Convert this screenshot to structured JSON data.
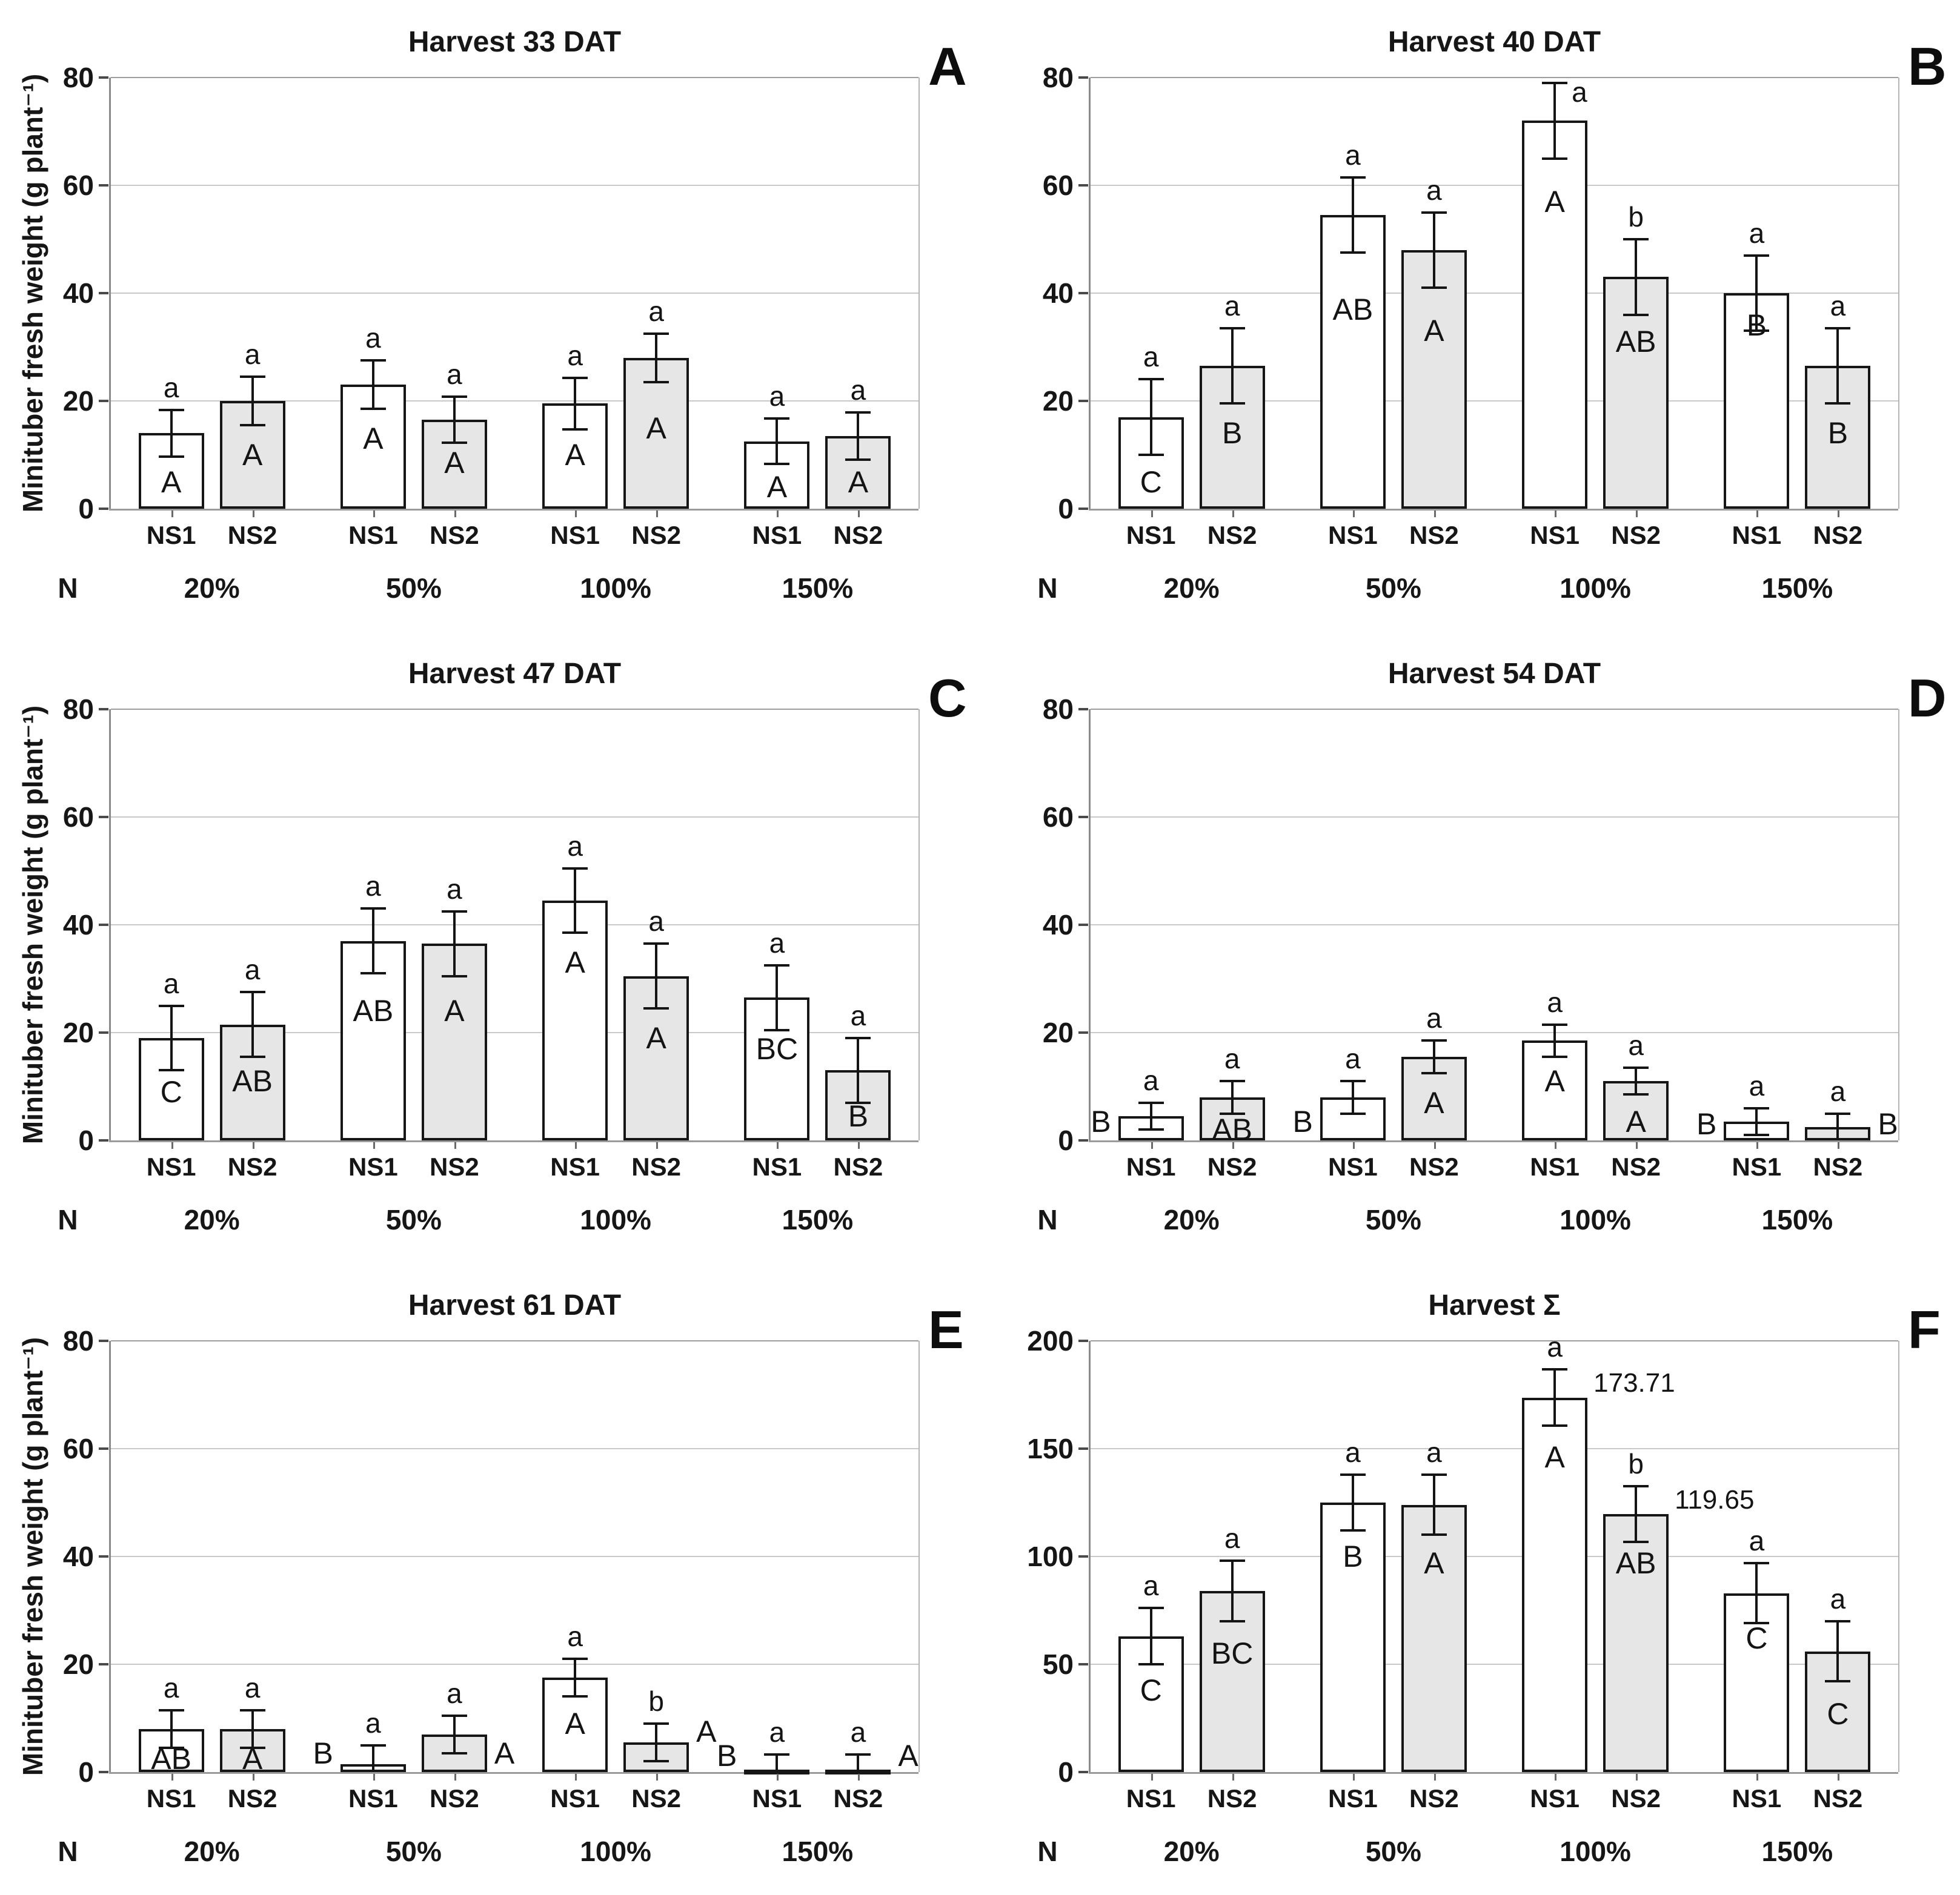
{
  "y_axis_title": "Minituber fresh weight (g plant⁻¹)",
  "n_axis_label": "N",
  "series_names": [
    "NS1",
    "NS2"
  ],
  "n_levels": [
    "20%",
    "50%",
    "100%",
    "150%"
  ],
  "colors": {
    "ns1_fill": "#ffffff",
    "ns2_fill": "#e6e6e6",
    "bar_border": "#161616",
    "grid": "#c9c9c9",
    "axis": "#8a8a8a",
    "text": "#161616"
  },
  "chart_data": [
    {
      "type": "bar",
      "panel_letter": "A",
      "title": "Harvest 33 DAT",
      "ylabel": "Minituber fresh weight (g plant⁻¹)",
      "show_ylabel": true,
      "ylim": [
        0,
        80
      ],
      "yticks": [
        0,
        20,
        40,
        60,
        80
      ],
      "groups": [
        "20%",
        "50%",
        "100%",
        "150%"
      ],
      "bars": [
        {
          "group": "20%",
          "series": "NS1",
          "value": 14,
          "error": 4.3,
          "sig_above": "a",
          "sig_group": "A",
          "sig_group_pos": "in",
          "sig_group_y": 5
        },
        {
          "group": "20%",
          "series": "NS2",
          "value": 20,
          "error": 4.5,
          "sig_above": "a",
          "sig_group": "A",
          "sig_group_pos": "in",
          "sig_group_y": 10
        },
        {
          "group": "50%",
          "series": "NS1",
          "value": 23,
          "error": 4.5,
          "sig_above": "a",
          "sig_group": "A",
          "sig_group_pos": "in",
          "sig_group_y": 13
        },
        {
          "group": "50%",
          "series": "NS2",
          "value": 16.5,
          "error": 4.3,
          "sig_above": "a",
          "sig_group": "A",
          "sig_group_pos": "in",
          "sig_group_y": 8.5
        },
        {
          "group": "100%",
          "series": "NS1",
          "value": 19.5,
          "error": 4.8,
          "sig_above": "a",
          "sig_group": "A",
          "sig_group_pos": "in",
          "sig_group_y": 10
        },
        {
          "group": "100%",
          "series": "NS2",
          "value": 28,
          "error": 4.5,
          "sig_above": "a",
          "sig_group": "A",
          "sig_group_pos": "in",
          "sig_group_y": 15
        },
        {
          "group": "150%",
          "series": "NS1",
          "value": 12.5,
          "error": 4.2,
          "sig_above": "a",
          "sig_group": "A",
          "sig_group_pos": "in",
          "sig_group_y": 4
        },
        {
          "group": "150%",
          "series": "NS2",
          "value": 13.5,
          "error": 4.4,
          "sig_above": "a",
          "sig_group": "A",
          "sig_group_pos": "in",
          "sig_group_y": 5
        }
      ]
    },
    {
      "type": "bar",
      "panel_letter": "B",
      "title": "Harvest 40 DAT",
      "show_ylabel": false,
      "ylim": [
        0,
        80
      ],
      "yticks": [
        0,
        20,
        40,
        60,
        80
      ],
      "groups": [
        "20%",
        "50%",
        "100%",
        "150%"
      ],
      "bars": [
        {
          "group": "20%",
          "series": "NS1",
          "value": 17,
          "error": 7,
          "sig_above": "a",
          "sig_group": "C",
          "sig_group_pos": "in",
          "sig_group_y": 5
        },
        {
          "group": "20%",
          "series": "NS2",
          "value": 26.5,
          "error": 7,
          "sig_above": "a",
          "sig_group": "B",
          "sig_group_pos": "in",
          "sig_group_y": 14
        },
        {
          "group": "50%",
          "series": "NS1",
          "value": 54.5,
          "error": 7,
          "sig_above": "a",
          "sig_group": "AB",
          "sig_group_pos": "in",
          "sig_group_y": 37
        },
        {
          "group": "50%",
          "series": "NS2",
          "value": 48,
          "error": 7,
          "sig_above": "a",
          "sig_group": "A",
          "sig_group_pos": "in",
          "sig_group_y": 33
        },
        {
          "group": "100%",
          "series": "NS1",
          "value": 72,
          "error": 7,
          "sig_above": "a",
          "sig_above_pos": "right",
          "sig_group": "A",
          "sig_group_pos": "in",
          "sig_group_y": 57
        },
        {
          "group": "100%",
          "series": "NS2",
          "value": 43,
          "error": 7,
          "sig_above": "b",
          "sig_group": "AB",
          "sig_group_pos": "in",
          "sig_group_y": 31
        },
        {
          "group": "150%",
          "series": "NS1",
          "value": 40,
          "error": 7,
          "sig_above": "a",
          "sig_group": "B",
          "sig_group_pos": "in",
          "sig_group_y": 34
        },
        {
          "group": "150%",
          "series": "NS2",
          "value": 26.5,
          "error": 7,
          "sig_above": "a",
          "sig_group": "B",
          "sig_group_pos": "in",
          "sig_group_y": 14
        }
      ]
    },
    {
      "type": "bar",
      "panel_letter": "C",
      "title": "Harvest 47 DAT",
      "ylabel": "Minituber fresh weight (g plant⁻¹)",
      "show_ylabel": true,
      "ylim": [
        0,
        80
      ],
      "yticks": [
        0,
        20,
        40,
        60,
        80
      ],
      "groups": [
        "20%",
        "50%",
        "100%",
        "150%"
      ],
      "bars": [
        {
          "group": "20%",
          "series": "NS1",
          "value": 19,
          "error": 6,
          "sig_above": "a",
          "sig_group": "C",
          "sig_group_pos": "in",
          "sig_group_y": 9
        },
        {
          "group": "20%",
          "series": "NS2",
          "value": 21.5,
          "error": 6,
          "sig_above": "a",
          "sig_group": "AB",
          "sig_group_pos": "in",
          "sig_group_y": 11
        },
        {
          "group": "50%",
          "series": "NS1",
          "value": 37,
          "error": 6,
          "sig_above": "a",
          "sig_group": "AB",
          "sig_group_pos": "in",
          "sig_group_y": 24
        },
        {
          "group": "50%",
          "series": "NS2",
          "value": 36.5,
          "error": 6,
          "sig_above": "a",
          "sig_group": "A",
          "sig_group_pos": "in",
          "sig_group_y": 24
        },
        {
          "group": "100%",
          "series": "NS1",
          "value": 44.5,
          "error": 6,
          "sig_above": "a",
          "sig_group": "A",
          "sig_group_pos": "in",
          "sig_group_y": 33
        },
        {
          "group": "100%",
          "series": "NS2",
          "value": 30.5,
          "error": 6,
          "sig_above": "a",
          "sig_group": "A",
          "sig_group_pos": "in",
          "sig_group_y": 19
        },
        {
          "group": "150%",
          "series": "NS1",
          "value": 26.5,
          "error": 6,
          "sig_above": "a",
          "sig_group": "BC",
          "sig_group_pos": "in",
          "sig_group_y": 17
        },
        {
          "group": "150%",
          "series": "NS2",
          "value": 13,
          "error": 6,
          "sig_above": "a",
          "sig_group": "B",
          "sig_group_pos": "in",
          "sig_group_y": 4.5
        }
      ]
    },
    {
      "type": "bar",
      "panel_letter": "D",
      "title": "Harvest 54 DAT",
      "show_ylabel": false,
      "ylim": [
        0,
        80
      ],
      "yticks": [
        0,
        20,
        40,
        60,
        80
      ],
      "groups": [
        "20%",
        "50%",
        "100%",
        "150%"
      ],
      "bars": [
        {
          "group": "20%",
          "series": "NS1",
          "value": 4.5,
          "error": 2.5,
          "sig_above": "a",
          "sig_group": "B",
          "sig_group_pos": "left",
          "sig_group_y": 3.5
        },
        {
          "group": "20%",
          "series": "NS2",
          "value": 8,
          "error": 3,
          "sig_above": "a",
          "sig_group": "AB",
          "sig_group_pos": "in",
          "sig_group_y": 2
        },
        {
          "group": "50%",
          "series": "NS1",
          "value": 8,
          "error": 3,
          "sig_above": "a",
          "sig_group": "B",
          "sig_group_pos": "left",
          "sig_group_y": 3.5
        },
        {
          "group": "50%",
          "series": "NS2",
          "value": 15.5,
          "error": 3,
          "sig_above": "a",
          "sig_group": "A",
          "sig_group_pos": "in",
          "sig_group_y": 7
        },
        {
          "group": "100%",
          "series": "NS1",
          "value": 18.5,
          "error": 3,
          "sig_above": "a",
          "sig_group": "A",
          "sig_group_pos": "in",
          "sig_group_y": 11
        },
        {
          "group": "100%",
          "series": "NS2",
          "value": 11,
          "error": 2.5,
          "sig_above": "a",
          "sig_group": "A",
          "sig_group_pos": "in",
          "sig_group_y": 3.5
        },
        {
          "group": "150%",
          "series": "NS1",
          "value": 3.5,
          "error": 2.5,
          "sig_above": "a",
          "sig_group": "B",
          "sig_group_pos": "left",
          "sig_group_y": 3
        },
        {
          "group": "150%",
          "series": "NS2",
          "value": 2.5,
          "error": 2.5,
          "sig_above": "a",
          "sig_group": "B",
          "sig_group_pos": "right",
          "sig_group_y": 3
        }
      ]
    },
    {
      "type": "bar",
      "panel_letter": "E",
      "title": "Harvest 61 DAT",
      "ylabel": "Minituber fresh weight (g plant⁻¹)",
      "show_ylabel": true,
      "ylim": [
        0,
        80
      ],
      "yticks": [
        0,
        20,
        40,
        60,
        80
      ],
      "groups": [
        "20%",
        "50%",
        "100%",
        "150%"
      ],
      "bars": [
        {
          "group": "20%",
          "series": "NS1",
          "value": 8,
          "error": 3.5,
          "sig_above": "a",
          "sig_group": "AB",
          "sig_group_pos": "in",
          "sig_group_y": 2.5
        },
        {
          "group": "20%",
          "series": "NS2",
          "value": 8,
          "error": 3.5,
          "sig_above": "a",
          "sig_group": "A",
          "sig_group_pos": "in",
          "sig_group_y": 2.5
        },
        {
          "group": "50%",
          "series": "NS1",
          "value": 1.5,
          "error": 3.5,
          "sig_above": "a",
          "sig_group": "B",
          "sig_group_pos": "left",
          "sig_group_y": 3.5
        },
        {
          "group": "50%",
          "series": "NS2",
          "value": 7,
          "error": 3.5,
          "sig_above": "a",
          "sig_group": "A",
          "sig_group_pos": "right",
          "sig_group_y": 3.5
        },
        {
          "group": "100%",
          "series": "NS1",
          "value": 17.5,
          "error": 3.5,
          "sig_above": "a",
          "sig_group": "A",
          "sig_group_pos": "in",
          "sig_group_y": 9
        },
        {
          "group": "100%",
          "series": "NS2",
          "value": 5.5,
          "error": 3.5,
          "sig_above": "b",
          "sig_group": "A",
          "sig_group_pos": "right",
          "sig_group_y": 7.5
        },
        {
          "group": "150%",
          "series": "NS1",
          "value": 0.3,
          "error": 3,
          "sig_above": "a",
          "sig_group": "B",
          "sig_group_pos": "left",
          "sig_group_y": 3
        },
        {
          "group": "150%",
          "series": "NS2",
          "value": 0.3,
          "error": 3,
          "sig_above": "a",
          "sig_group": "A",
          "sig_group_pos": "right",
          "sig_group_y": 3
        }
      ]
    },
    {
      "type": "bar",
      "panel_letter": "F",
      "title": "Harvest Σ",
      "show_ylabel": false,
      "ylim": [
        0,
        200
      ],
      "yticks": [
        0,
        50,
        100,
        150,
        200
      ],
      "groups": [
        "20%",
        "50%",
        "100%",
        "150%"
      ],
      "bars": [
        {
          "group": "20%",
          "series": "NS1",
          "value": 63,
          "error": 13,
          "sig_above": "a",
          "sig_group": "C",
          "sig_group_pos": "in",
          "sig_group_y": 38
        },
        {
          "group": "20%",
          "series": "NS2",
          "value": 84,
          "error": 14,
          "sig_above": "a",
          "sig_group": "BC",
          "sig_group_pos": "in",
          "sig_group_y": 55
        },
        {
          "group": "50%",
          "series": "NS1",
          "value": 125,
          "error": 13,
          "sig_above": "a",
          "sig_group": "B",
          "sig_group_pos": "in",
          "sig_group_y": 100
        },
        {
          "group": "50%",
          "series": "NS2",
          "value": 124,
          "error": 14,
          "sig_above": "a",
          "sig_group": "A",
          "sig_group_pos": "in",
          "sig_group_y": 97
        },
        {
          "group": "100%",
          "series": "NS1",
          "value": 173.71,
          "error": 13,
          "sig_above": "a",
          "sig_group": "A",
          "sig_group_pos": "in",
          "sig_group_y": 146,
          "value_label": "173.71"
        },
        {
          "group": "100%",
          "series": "NS2",
          "value": 119.65,
          "error": 13,
          "sig_above": "b",
          "sig_group": "AB",
          "sig_group_pos": "in",
          "sig_group_y": 97,
          "value_label": "119.65"
        },
        {
          "group": "150%",
          "series": "NS1",
          "value": 83,
          "error": 14,
          "sig_above": "a",
          "sig_group": "C",
          "sig_group_pos": "in",
          "sig_group_y": 62
        },
        {
          "group": "150%",
          "series": "NS2",
          "value": 56,
          "error": 14,
          "sig_above": "a",
          "sig_group": "C",
          "sig_group_pos": "in",
          "sig_group_y": 27
        }
      ]
    }
  ]
}
